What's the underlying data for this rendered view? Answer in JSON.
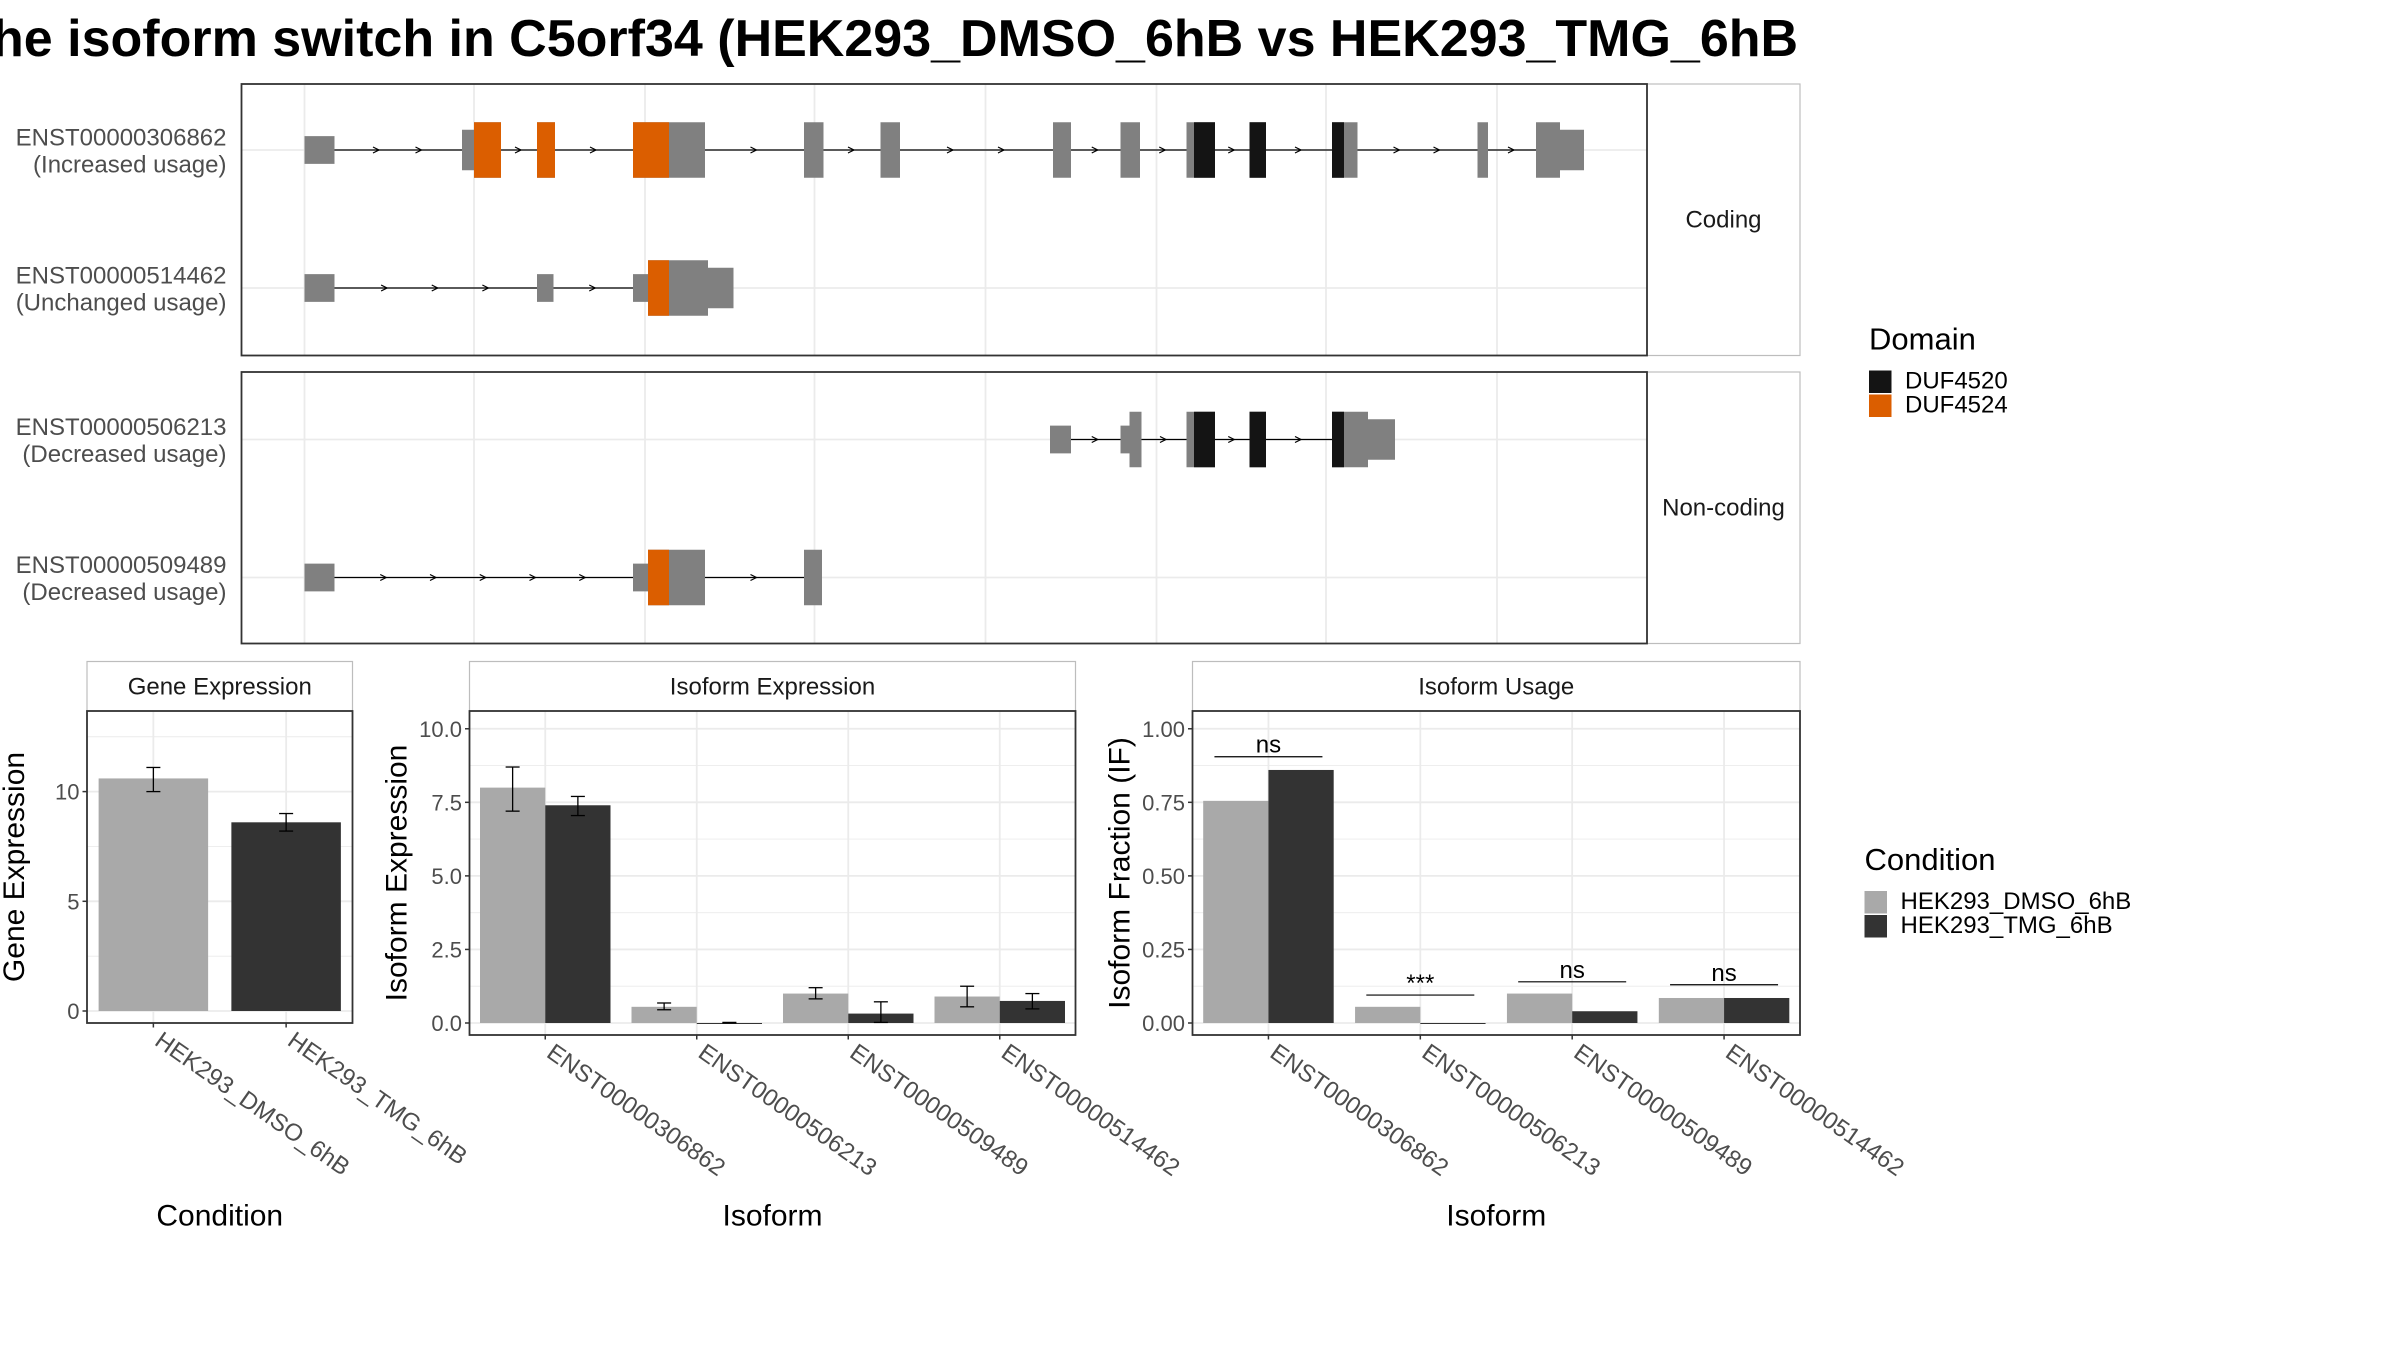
{
  "title": "he isoform switch in C5orf34 (HEK293_DMSO_6hB vs HEK293_TMG_6hB",
  "colors": {
    "exon": "#808080",
    "DUF4520": "#141414",
    "DUF4524": "#DB5E00",
    "dmso": "#A9A9A9",
    "tmg": "#333333"
  },
  "transcripts": {
    "facets": [
      {
        "label": "Coding",
        "rows": [
          {
            "id": "ENST00000306862",
            "usage": "(Increased usage)",
            "exons": [
              [
                203,
                223,
                "t"
              ],
              [
                308,
                316,
                "m"
              ],
              [
                316,
                334,
                "T"
              ],
              [
                358,
                370,
                "T"
              ],
              [
                422,
                446,
                "T"
              ],
              [
                446,
                470,
                "T"
              ],
              [
                536,
                549,
                "T"
              ],
              [
                587,
                600,
                "T"
              ],
              [
                702,
                714,
                "T"
              ],
              [
                747,
                760,
                "T"
              ],
              [
                791,
                796,
                "T"
              ],
              [
                796,
                810,
                "T"
              ],
              [
                833,
                844,
                "T"
              ],
              [
                888,
                896,
                "T"
              ],
              [
                896,
                905,
                "T"
              ],
              [
                985,
                992,
                "T"
              ],
              [
                1024,
                1040,
                "T"
              ],
              [
                1040,
                1056,
                "m"
              ]
            ],
            "domains": [
              [
                316,
                334,
                "DUF4524"
              ],
              [
                358,
                370,
                "DUF4524"
              ],
              [
                422,
                446,
                "DUF4524"
              ],
              [
                796,
                810,
                "DUF4520"
              ],
              [
                833,
                844,
                "DUF4520"
              ],
              [
                888,
                896,
                "DUF4520"
              ]
            ]
          },
          {
            "id": "ENST00000514462",
            "usage": "(Unchanged usage)",
            "exons": [
              [
                203,
                223,
                "t"
              ],
              [
                358,
                369,
                "t"
              ],
              [
                422,
                432,
                "t"
              ],
              [
                432,
                446,
                "T"
              ],
              [
                446,
                472,
                "T"
              ],
              [
                472,
                489,
                "m"
              ]
            ],
            "domains": [
              [
                432,
                446,
                "DUF4524"
              ]
            ]
          }
        ]
      },
      {
        "label": "Non-coding",
        "rows": [
          {
            "id": "ENST00000506213",
            "usage": "(Decreased usage)",
            "exons": [
              [
                700,
                714,
                "t"
              ],
              [
                747,
                753,
                "t"
              ],
              [
                753,
                761,
                "T"
              ],
              [
                791,
                796,
                "T"
              ],
              [
                796,
                810,
                "T"
              ],
              [
                833,
                844,
                "T"
              ],
              [
                888,
                896,
                "T"
              ],
              [
                896,
                912,
                "T"
              ],
              [
                912,
                930,
                "m"
              ]
            ],
            "domains": [
              [
                796,
                810,
                "DUF4520"
              ],
              [
                833,
                844,
                "DUF4520"
              ],
              [
                888,
                896,
                "DUF4520"
              ]
            ]
          },
          {
            "id": "ENST00000509489",
            "usage": "(Decreased usage)",
            "exons": [
              [
                203,
                223,
                "t"
              ],
              [
                422,
                432,
                "t"
              ],
              [
                432,
                446,
                "T"
              ],
              [
                446,
                470,
                "T"
              ],
              [
                536,
                548,
                "T"
              ]
            ],
            "domains": [
              [
                432,
                446,
                "DUF4524"
              ]
            ]
          }
        ]
      }
    ]
  },
  "legend_domain": {
    "title": "Domain",
    "items": [
      {
        "label": "DUF4520",
        "color": "#141414"
      },
      {
        "label": "DUF4524",
        "color": "#DB5E00"
      }
    ]
  },
  "legend_condition": {
    "title": "Condition",
    "items": [
      {
        "label": "HEK293_DMSO_6hB",
        "color": "#A9A9A9"
      },
      {
        "label": "HEK293_TMG_6hB",
        "color": "#333333"
      }
    ]
  },
  "chart_data": [
    {
      "type": "bar",
      "title": "Gene Expression",
      "xlabel": "Condition",
      "ylabel": "Gene Expression",
      "categories": [
        "HEK293_DMSO_6hB",
        "HEK293_TMG_6hB"
      ],
      "values": [
        10.6,
        8.6
      ],
      "errors": [
        [
          10.0,
          11.1
        ],
        [
          8.2,
          9.0
        ]
      ],
      "ylim": [
        0,
        13.4
      ],
      "yticks": [
        0,
        5,
        10
      ],
      "ytick_labels": [
        "0",
        "5",
        "10"
      ]
    },
    {
      "type": "bar",
      "title": "Isoform Expression",
      "xlabel": "Isoform",
      "ylabel": "Isoform Expression",
      "categories": [
        "ENST00000306862",
        "ENST00000506213",
        "ENST00000509489",
        "ENST00000514462"
      ],
      "series": [
        {
          "name": "HEK293_DMSO_6hB",
          "values": [
            8.0,
            0.55,
            1.0,
            0.9
          ],
          "errors": [
            [
              7.2,
              8.7
            ],
            [
              0.45,
              0.68
            ],
            [
              0.82,
              1.2
            ],
            [
              0.55,
              1.25
            ]
          ]
        },
        {
          "name": "HEK293_TMG_6hB",
          "values": [
            7.4,
            0.0,
            0.32,
            0.75
          ],
          "errors": [
            [
              7.05,
              7.7
            ],
            [
              0.0,
              0.02
            ],
            [
              0.02,
              0.72
            ],
            [
              0.48,
              1.0
            ]
          ]
        }
      ],
      "ylim": [
        0,
        10.4
      ],
      "yticks": [
        0,
        2.5,
        5,
        7.5,
        10
      ],
      "ytick_labels": [
        "0.0",
        "2.5",
        "5.0",
        "7.5",
        "10.0"
      ]
    },
    {
      "type": "bar",
      "title": "Isoform Usage",
      "xlabel": "Isoform",
      "ylabel": "Isoform Fraction (IF)",
      "categories": [
        "ENST00000306862",
        "ENST00000506213",
        "ENST00000509489",
        "ENST00000514462"
      ],
      "series": [
        {
          "name": "HEK293_DMSO_6hB",
          "values": [
            0.755,
            0.055,
            0.1,
            0.085
          ]
        },
        {
          "name": "HEK293_TMG_6hB",
          "values": [
            0.86,
            0.0,
            0.04,
            0.085
          ]
        }
      ],
      "significance": [
        "ns",
        "***",
        "ns",
        "ns"
      ],
      "significance_y": [
        0.905,
        0.095,
        0.14,
        0.13
      ],
      "ylim": [
        0,
        1.04
      ],
      "yticks": [
        0,
        0.25,
        0.5,
        0.75,
        1.0
      ],
      "ytick_labels": [
        "0.00",
        "0.25",
        "0.50",
        "0.75",
        "1.00"
      ]
    }
  ]
}
